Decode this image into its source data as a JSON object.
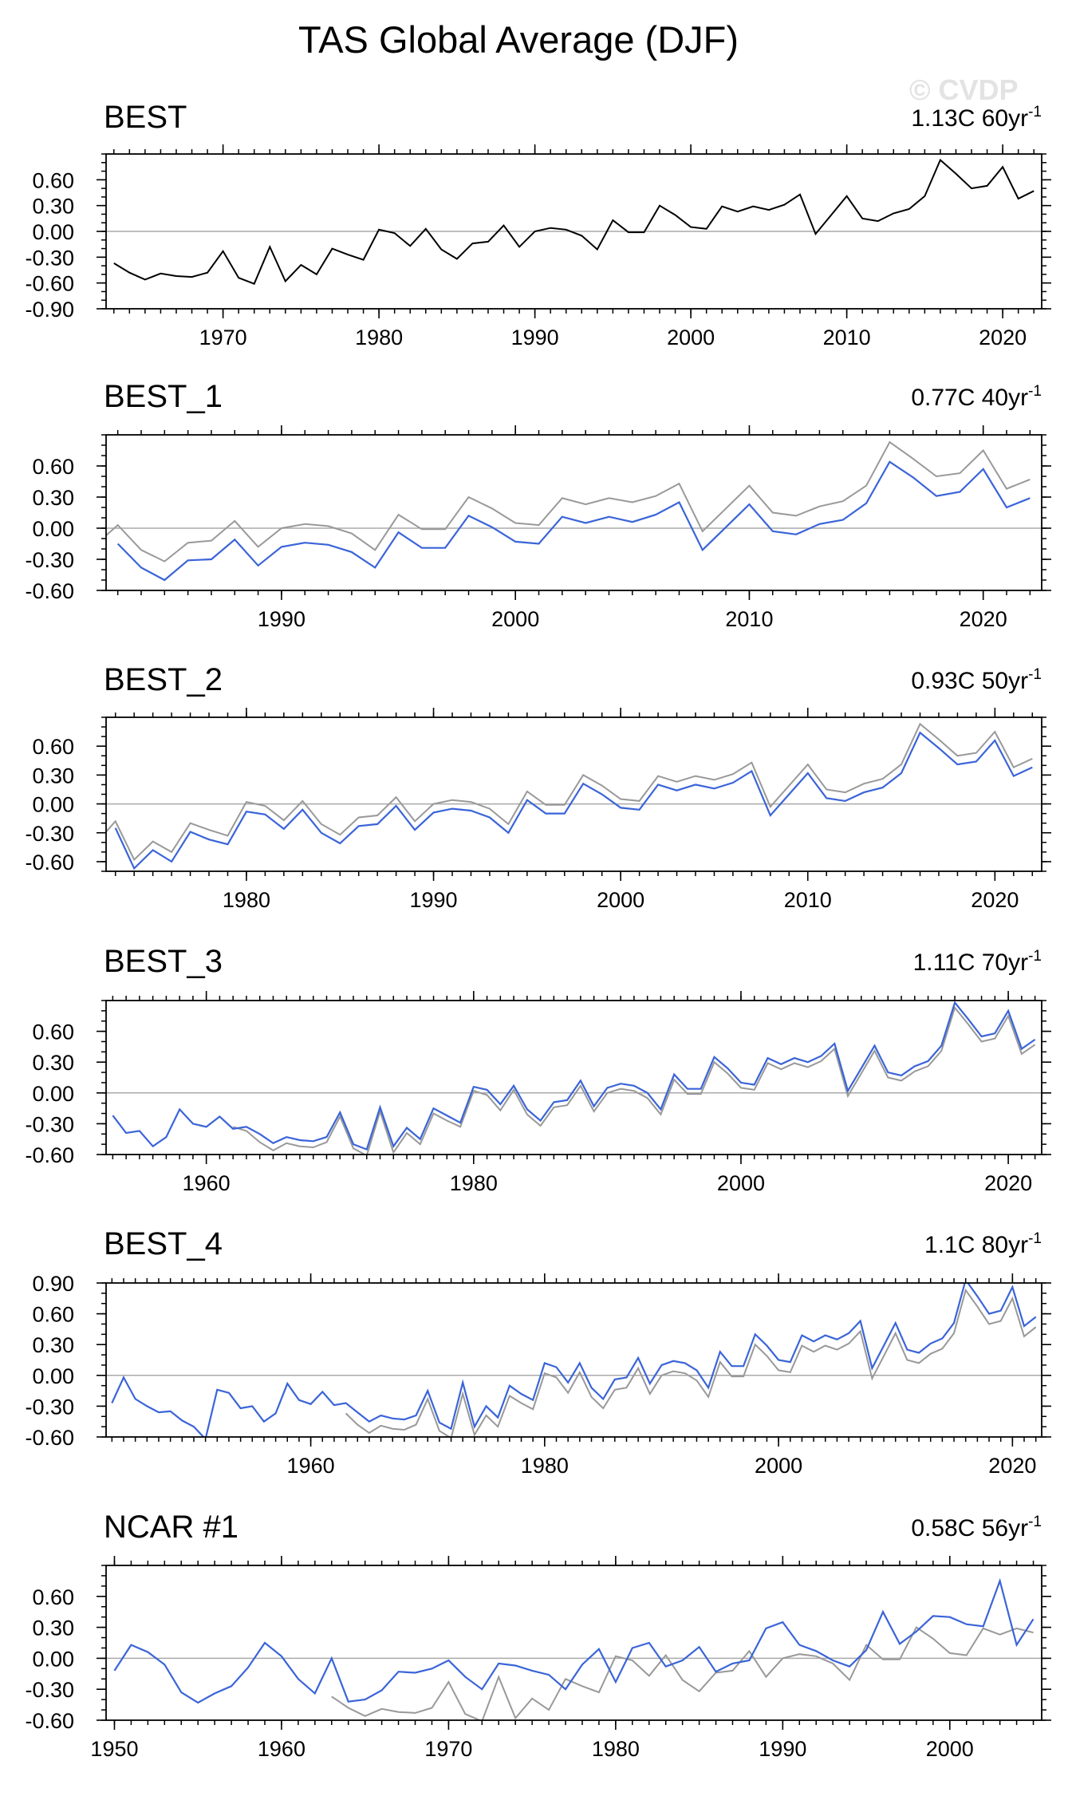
{
  "title": "TAS Global Average (DJF)",
  "watermark": "© CVDP",
  "colors": {
    "observed": "#000000",
    "comparison": "#999999",
    "model": "#3a64d8",
    "zero_line": "#aaaaaa"
  },
  "chart_data": [
    {
      "type": "line",
      "title": "BEST",
      "trend_value": "1.13C",
      "trend_period": "60yr",
      "trend_unit_exponent": "-1",
      "xlim": [
        1962.5,
        2022.5
      ],
      "ylim": [
        -0.9,
        0.9
      ],
      "yticks": [
        -0.9,
        -0.6,
        -0.3,
        0.0,
        0.3,
        0.6
      ],
      "ytick_labels": [
        "-0.90",
        "-0.60",
        "-0.30",
        "0.00",
        "0.30",
        "0.60"
      ],
      "xticks": [
        1970,
        1980,
        1990,
        2000,
        2010,
        2020
      ],
      "xtick_labels": [
        "1970",
        "1980",
        "1990",
        "2000",
        "2010",
        "2020"
      ],
      "series": [
        {
          "name": "BEST",
          "role": "observed",
          "x_start": 1963,
          "values": [
            -0.37,
            -0.48,
            -0.56,
            -0.49,
            -0.52,
            -0.53,
            -0.48,
            -0.23,
            -0.54,
            -0.61,
            -0.18,
            -0.58,
            -0.39,
            -0.5,
            -0.2,
            -0.27,
            -0.33,
            0.02,
            -0.02,
            -0.17,
            0.03,
            -0.21,
            -0.32,
            -0.14,
            -0.12,
            0.07,
            -0.18,
            0.0,
            0.04,
            0.02,
            -0.05,
            -0.21,
            0.13,
            -0.01,
            -0.01,
            0.3,
            0.19,
            0.05,
            0.03,
            0.29,
            0.23,
            0.29,
            0.25,
            0.31,
            0.43,
            -0.03,
            0.19,
            0.41,
            0.15,
            0.12,
            0.21,
            0.26,
            0.41,
            0.83,
            0.67,
            0.5,
            0.53,
            0.75,
            0.38,
            0.47
          ]
        }
      ]
    },
    {
      "type": "line",
      "title": "BEST_1",
      "trend_value": "0.77C",
      "trend_period": "40yr",
      "trend_unit_exponent": "-1",
      "xlim": [
        1982.5,
        2022.5
      ],
      "ylim": [
        -0.6,
        0.9
      ],
      "yticks": [
        -0.6,
        -0.3,
        0.0,
        0.3,
        0.6
      ],
      "ytick_labels": [
        "-0.60",
        "-0.30",
        "0.00",
        "0.30",
        "0.60"
      ],
      "xticks": [
        1990,
        2000,
        2010,
        2020
      ],
      "xtick_labels": [
        "1990",
        "2000",
        "2010",
        "2020"
      ],
      "series": [
        {
          "name": "BEST",
          "role": "comparison",
          "x_start": 1982,
          "values": [
            -0.17,
            0.03,
            -0.21,
            -0.32,
            -0.14,
            -0.12,
            0.07,
            -0.18,
            0.0,
            0.04,
            0.02,
            -0.05,
            -0.21,
            0.13,
            -0.01,
            -0.01,
            0.3,
            0.19,
            0.05,
            0.03,
            0.29,
            0.23,
            0.29,
            0.25,
            0.31,
            0.43,
            -0.03,
            0.19,
            0.41,
            0.15,
            0.12,
            0.21,
            0.26,
            0.41,
            0.83,
            0.67,
            0.5,
            0.53,
            0.75,
            0.38,
            0.47
          ]
        },
        {
          "name": "BEST_1",
          "role": "model",
          "x_start": 1983,
          "values": [
            -0.15,
            -0.38,
            -0.5,
            -0.31,
            -0.3,
            -0.11,
            -0.36,
            -0.18,
            -0.14,
            -0.16,
            -0.23,
            -0.38,
            -0.04,
            -0.19,
            -0.19,
            0.12,
            0.01,
            -0.13,
            -0.15,
            0.11,
            0.05,
            0.11,
            0.06,
            0.13,
            0.25,
            -0.21,
            0.01,
            0.23,
            -0.03,
            -0.06,
            0.04,
            0.08,
            0.24,
            0.64,
            0.49,
            0.31,
            0.35,
            0.57,
            0.2,
            0.29
          ]
        }
      ]
    },
    {
      "type": "line",
      "title": "BEST_2",
      "trend_value": "0.93C",
      "trend_period": "50yr",
      "trend_unit_exponent": "-1",
      "xlim": [
        1972.5,
        2022.5
      ],
      "ylim": [
        -0.7,
        0.9
      ],
      "yticks": [
        -0.6,
        -0.3,
        0.0,
        0.3,
        0.6
      ],
      "ytick_labels": [
        "-0.60",
        "-0.30",
        "0.00",
        "0.30",
        "0.60"
      ],
      "xticks": [
        1980,
        1990,
        2000,
        2010,
        2020
      ],
      "xtick_labels": [
        "1980",
        "1990",
        "2000",
        "2010",
        "2020"
      ],
      "series": [
        {
          "name": "BEST",
          "role": "comparison",
          "x_start": 1972,
          "values": [
            -0.4,
            -0.18,
            -0.58,
            -0.39,
            -0.5,
            -0.2,
            -0.27,
            -0.33,
            0.02,
            -0.02,
            -0.17,
            0.03,
            -0.21,
            -0.32,
            -0.14,
            -0.12,
            0.07,
            -0.18,
            0.0,
            0.04,
            0.02,
            -0.05,
            -0.21,
            0.13,
            -0.01,
            -0.01,
            0.3,
            0.19,
            0.05,
            0.03,
            0.29,
            0.23,
            0.29,
            0.25,
            0.31,
            0.43,
            -0.03,
            0.19,
            0.41,
            0.15,
            0.12,
            0.21,
            0.26,
            0.41,
            0.83,
            0.67,
            0.5,
            0.53,
            0.75,
            0.38,
            0.47
          ]
        },
        {
          "name": "BEST_2",
          "role": "model",
          "x_start": 1973,
          "values": [
            -0.25,
            -0.67,
            -0.48,
            -0.6,
            -0.29,
            -0.37,
            -0.42,
            -0.08,
            -0.11,
            -0.26,
            -0.06,
            -0.3,
            -0.41,
            -0.23,
            -0.21,
            -0.02,
            -0.27,
            -0.09,
            -0.05,
            -0.07,
            -0.14,
            -0.3,
            0.04,
            -0.1,
            -0.1,
            0.21,
            0.1,
            -0.04,
            -0.06,
            0.2,
            0.14,
            0.2,
            0.16,
            0.22,
            0.34,
            -0.12,
            0.1,
            0.32,
            0.06,
            0.03,
            0.12,
            0.17,
            0.32,
            0.74,
            0.58,
            0.41,
            0.44,
            0.66,
            0.29,
            0.38
          ]
        }
      ]
    },
    {
      "type": "line",
      "title": "BEST_3",
      "trend_value": "1.11C",
      "trend_period": "70yr",
      "trend_unit_exponent": "-1",
      "xlim": [
        1952.5,
        2022.5
      ],
      "ylim": [
        -0.6,
        0.9
      ],
      "yticks": [
        -0.6,
        -0.3,
        0.0,
        0.3,
        0.6
      ],
      "ytick_labels": [
        "-0.60",
        "-0.30",
        "0.00",
        "0.30",
        "0.60"
      ],
      "xticks": [
        1960,
        1980,
        2000,
        2020
      ],
      "xtick_labels": [
        "1960",
        "1980",
        "2000",
        "2020"
      ],
      "series": [
        {
          "name": "BEST",
          "role": "comparison",
          "x_start": 1962,
          "values": [
            -0.33,
            -0.37,
            -0.48,
            -0.56,
            -0.49,
            -0.52,
            -0.53,
            -0.48,
            -0.23,
            -0.54,
            -0.61,
            -0.18,
            -0.58,
            -0.39,
            -0.5,
            -0.2,
            -0.27,
            -0.33,
            0.02,
            -0.02,
            -0.17,
            0.03,
            -0.21,
            -0.32,
            -0.14,
            -0.12,
            0.07,
            -0.18,
            0.0,
            0.04,
            0.02,
            -0.05,
            -0.21,
            0.13,
            -0.01,
            -0.01,
            0.3,
            0.19,
            0.05,
            0.03,
            0.29,
            0.23,
            0.29,
            0.25,
            0.31,
            0.43,
            -0.03,
            0.19,
            0.41,
            0.15,
            0.12,
            0.21,
            0.26,
            0.41,
            0.83,
            0.67,
            0.5,
            0.53,
            0.75,
            0.38,
            0.47
          ]
        },
        {
          "name": "BEST_3",
          "role": "model",
          "x_start": 1953,
          "values": [
            -0.22,
            -0.39,
            -0.37,
            -0.52,
            -0.43,
            -0.16,
            -0.3,
            -0.33,
            -0.23,
            -0.35,
            -0.33,
            -0.4,
            -0.49,
            -0.43,
            -0.46,
            -0.47,
            -0.43,
            -0.19,
            -0.5,
            -0.55,
            -0.14,
            -0.52,
            -0.34,
            -0.45,
            -0.15,
            -0.22,
            -0.29,
            0.06,
            0.03,
            -0.11,
            0.07,
            -0.16,
            -0.27,
            -0.09,
            -0.07,
            0.12,
            -0.13,
            0.05,
            0.09,
            0.07,
            0.0,
            -0.16,
            0.18,
            0.04,
            0.04,
            0.35,
            0.24,
            0.1,
            0.08,
            0.34,
            0.28,
            0.34,
            0.3,
            0.36,
            0.48,
            0.02,
            0.24,
            0.46,
            0.2,
            0.17,
            0.26,
            0.31,
            0.46,
            0.88,
            0.72,
            0.55,
            0.58,
            0.8,
            0.43,
            0.52
          ]
        }
      ]
    },
    {
      "type": "line",
      "title": "BEST_4",
      "trend_value": "1.1C",
      "trend_period": "80yr",
      "trend_unit_exponent": "-1",
      "xlim": [
        1942.5,
        2022.5
      ],
      "ylim": [
        -0.6,
        0.9
      ],
      "yticks": [
        -0.6,
        -0.3,
        0.0,
        0.3,
        0.6,
        0.9
      ],
      "ytick_labels": [
        "-0.60",
        "-0.30",
        "0.00",
        "0.30",
        "0.60",
        "0.90"
      ],
      "xticks": [
        1960,
        1980,
        2000,
        2020
      ],
      "xtick_labels": [
        "1960",
        "1980",
        "2000",
        "2020"
      ],
      "series": [
        {
          "name": "BEST",
          "role": "comparison",
          "x_start": 1963,
          "values": [
            -0.37,
            -0.48,
            -0.56,
            -0.49,
            -0.52,
            -0.53,
            -0.48,
            -0.23,
            -0.54,
            -0.61,
            -0.18,
            -0.58,
            -0.39,
            -0.5,
            -0.2,
            -0.27,
            -0.33,
            0.02,
            -0.02,
            -0.17,
            0.03,
            -0.21,
            -0.32,
            -0.14,
            -0.12,
            0.07,
            -0.18,
            0.0,
            0.04,
            0.02,
            -0.05,
            -0.21,
            0.13,
            -0.01,
            -0.01,
            0.3,
            0.19,
            0.05,
            0.03,
            0.29,
            0.23,
            0.29,
            0.25,
            0.31,
            0.43,
            -0.03,
            0.19,
            0.41,
            0.15,
            0.12,
            0.21,
            0.26,
            0.41,
            0.83,
            0.67,
            0.5,
            0.53,
            0.75,
            0.38,
            0.47
          ]
        },
        {
          "name": "BEST_4",
          "role": "model",
          "x_start": 1943,
          "values": [
            -0.27,
            -0.02,
            -0.23,
            -0.3,
            -0.36,
            -0.35,
            -0.44,
            -0.5,
            -0.62,
            -0.14,
            -0.17,
            -0.32,
            -0.3,
            -0.45,
            -0.37,
            -0.08,
            -0.24,
            -0.28,
            -0.16,
            -0.29,
            -0.27,
            -0.36,
            -0.45,
            -0.39,
            -0.42,
            -0.43,
            -0.39,
            -0.15,
            -0.46,
            -0.52,
            -0.07,
            -0.5,
            -0.3,
            -0.41,
            -0.1,
            -0.18,
            -0.24,
            0.12,
            0.08,
            -0.07,
            0.12,
            -0.12,
            -0.23,
            -0.04,
            -0.02,
            0.17,
            -0.08,
            0.1,
            0.14,
            0.12,
            0.05,
            -0.12,
            0.23,
            0.09,
            0.09,
            0.4,
            0.29,
            0.15,
            0.13,
            0.39,
            0.33,
            0.39,
            0.35,
            0.41,
            0.53,
            0.07,
            0.29,
            0.51,
            0.25,
            0.22,
            0.31,
            0.36,
            0.51,
            0.93,
            0.77,
            0.6,
            0.63,
            0.86,
            0.48,
            0.57
          ]
        }
      ]
    },
    {
      "type": "line",
      "title": "NCAR #1",
      "trend_value": "0.58C",
      "trend_period": "56yr",
      "trend_unit_exponent": "-1",
      "xlim": [
        1949.5,
        2005.5
      ],
      "ylim": [
        -0.6,
        0.9
      ],
      "yticks": [
        -0.6,
        -0.3,
        0.0,
        0.3,
        0.6
      ],
      "ytick_labels": [
        "-0.60",
        "-0.30",
        "0.00",
        "0.30",
        "0.60"
      ],
      "xticks": [
        1950,
        1960,
        1970,
        1980,
        1990,
        2000
      ],
      "xtick_labels": [
        "1950",
        "1960",
        "1970",
        "1980",
        "1990",
        "2000"
      ],
      "series": [
        {
          "name": "BEST",
          "role": "comparison",
          "x_start": 1963,
          "values": [
            -0.37,
            -0.48,
            -0.56,
            -0.49,
            -0.52,
            -0.53,
            -0.48,
            -0.23,
            -0.54,
            -0.61,
            -0.18,
            -0.58,
            -0.39,
            -0.5,
            -0.2,
            -0.27,
            -0.33,
            0.02,
            -0.02,
            -0.17,
            0.03,
            -0.21,
            -0.32,
            -0.14,
            -0.12,
            0.07,
            -0.18,
            0.0,
            0.04,
            0.02,
            -0.05,
            -0.21,
            0.13,
            -0.01,
            -0.01,
            0.3,
            0.19,
            0.05,
            0.03,
            0.29,
            0.23,
            0.29,
            0.25
          ]
        },
        {
          "name": "NCAR #1",
          "role": "model",
          "x_start": 1950,
          "values": [
            -0.12,
            0.13,
            0.06,
            -0.06,
            -0.33,
            -0.43,
            -0.34,
            -0.27,
            -0.09,
            0.15,
            0.02,
            -0.2,
            -0.34,
            0.0,
            -0.42,
            -0.4,
            -0.31,
            -0.13,
            -0.14,
            -0.1,
            -0.02,
            -0.18,
            -0.3,
            -0.05,
            -0.07,
            -0.12,
            -0.16,
            -0.3,
            -0.06,
            0.09,
            -0.23,
            0.1,
            0.15,
            -0.08,
            -0.02,
            0.11,
            -0.13,
            -0.05,
            -0.02,
            0.29,
            0.35,
            0.13,
            0.07,
            -0.02,
            -0.08,
            0.08,
            0.45,
            0.14,
            0.26,
            0.41,
            0.4,
            0.33,
            0.31,
            0.75,
            0.13,
            0.38
          ]
        }
      ]
    }
  ]
}
